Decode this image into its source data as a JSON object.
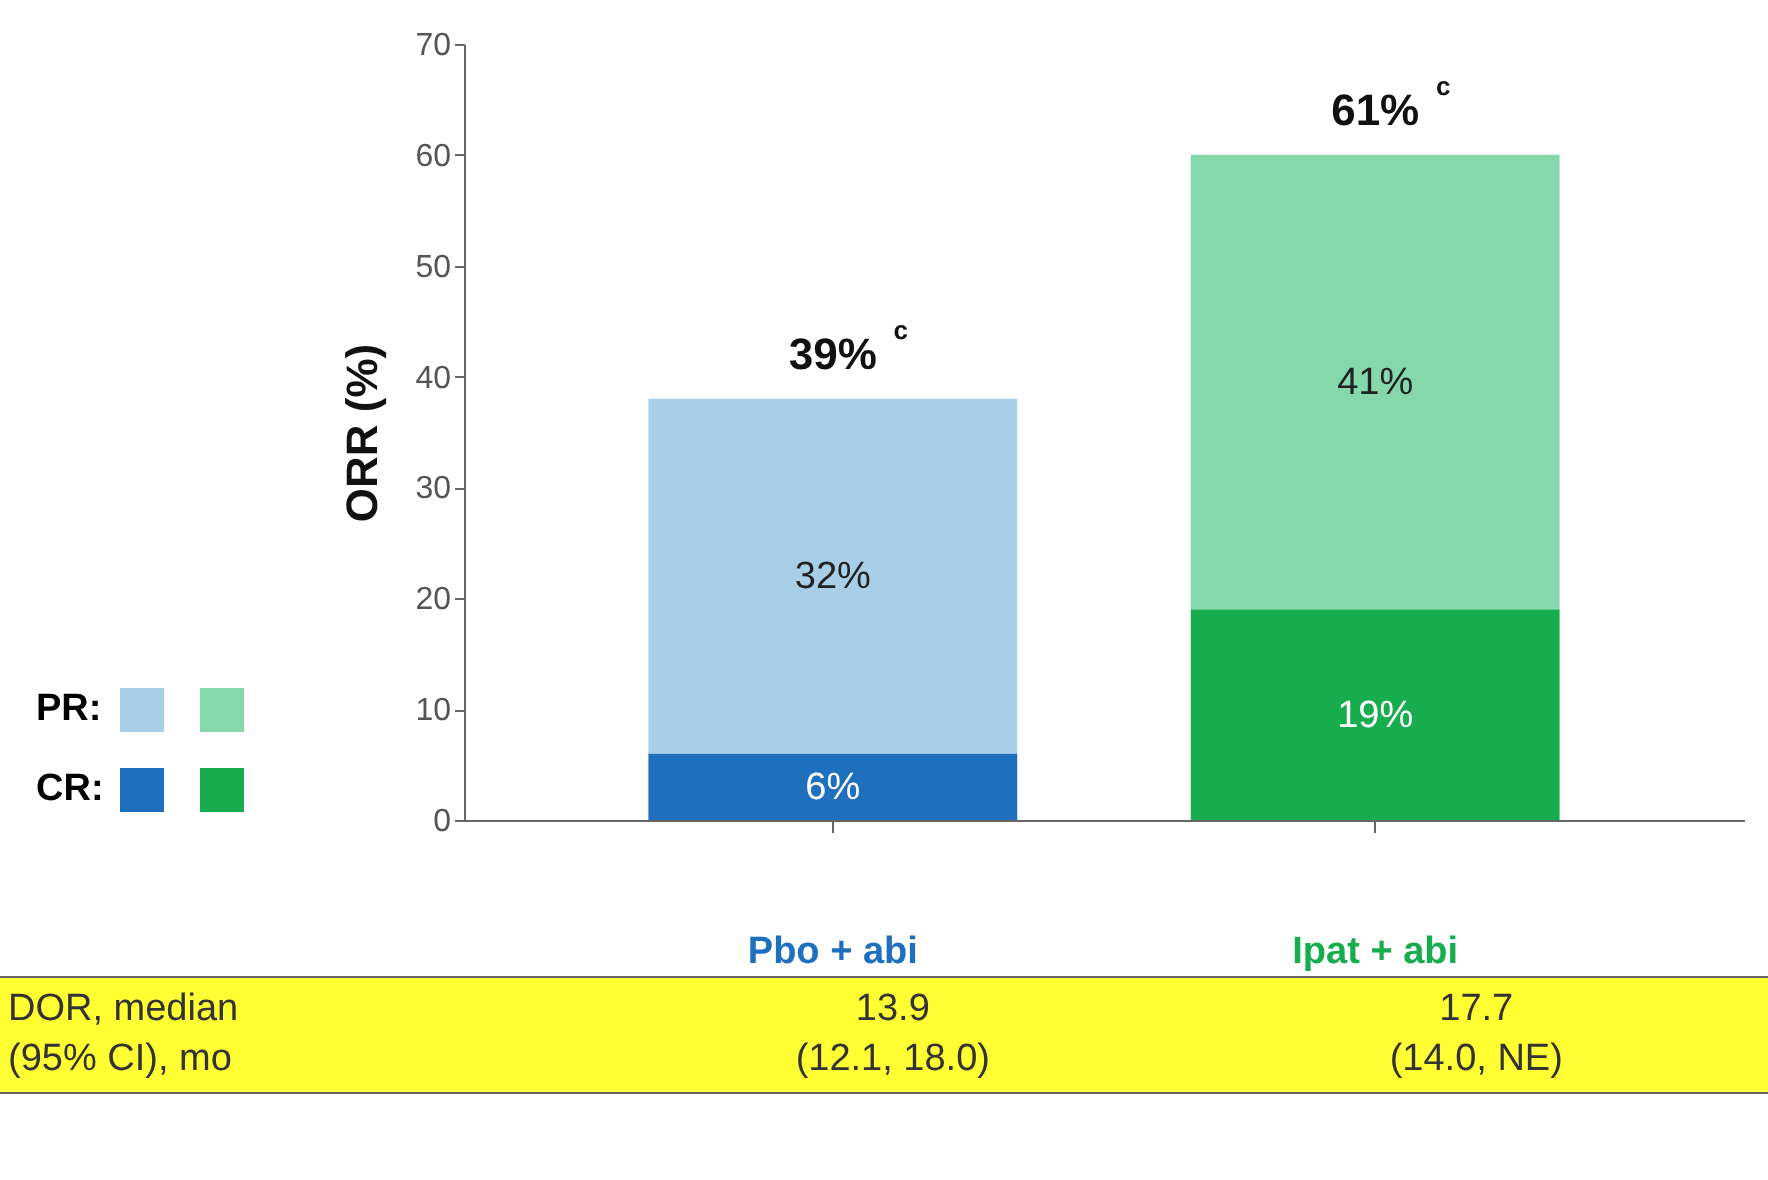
{
  "chart_data": {
    "type": "bar",
    "stacked": true,
    "ylabel": "ORR (%)",
    "categories": [
      "Pbo + abi",
      "Ipat + abi"
    ],
    "series": [
      {
        "name": "CR:",
        "colors": [
          "#1f6fbf",
          "#17ad4e"
        ],
        "values": [
          6,
          19
        ],
        "value_labels": [
          "6%",
          "19%"
        ]
      },
      {
        "name": "PR:",
        "colors": [
          "#a8cfe7",
          "#85d8a9"
        ],
        "values": [
          32,
          41
        ],
        "value_labels": [
          "32%",
          "41%"
        ]
      }
    ],
    "totals": [
      "39%$^{c}$",
      "61%$^{c}$"
    ],
    "ylim": [
      0,
      70
    ],
    "yticks": [
      0,
      10,
      20,
      30,
      40,
      50,
      60,
      70
    ],
    "grid": false,
    "legend": "left",
    "annotations": [
      "DOR, median\n(95% CI), mo",
      "13.9\n(12.1, 18.0)",
      "17.7\n(14.0, NE)"
    ]
  }
}
